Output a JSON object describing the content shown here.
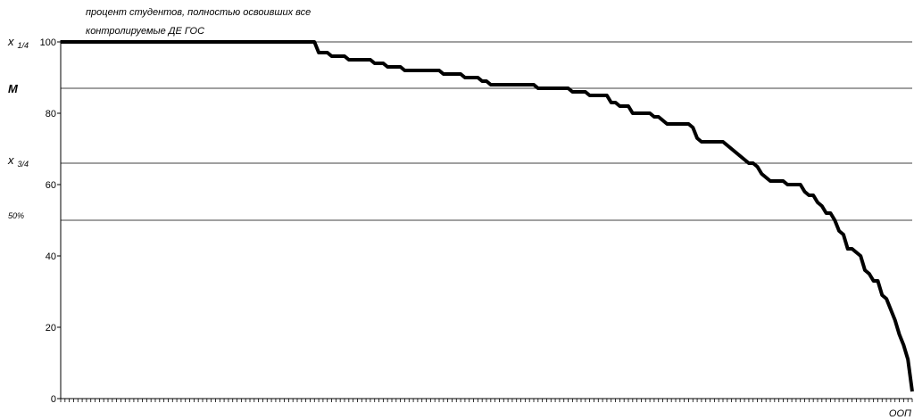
{
  "chart_data": {
    "type": "line",
    "title_lines": [
      "процент студентов, полностью освоивших все",
      "контролируемые ДЕ ГОС"
    ],
    "xlabel": "ООП",
    "ylim": [
      0,
      100
    ],
    "yticks": [
      0,
      20,
      40,
      60,
      80,
      100
    ],
    "reference_lines": [
      {
        "label": "x",
        "sub": "1/4",
        "value": 100
      },
      {
        "label": "M",
        "sub": "",
        "value": 87
      },
      {
        "label": "x",
        "sub": "3/4",
        "value": 66
      },
      {
        "label": "50%",
        "sub": "",
        "value": 50
      }
    ],
    "series": [
      {
        "line_color": "#000000",
        "y": [
          100,
          100,
          100,
          100,
          100,
          100,
          100,
          100,
          100,
          100,
          100,
          100,
          100,
          100,
          100,
          100,
          100,
          100,
          100,
          100,
          100,
          100,
          100,
          100,
          100,
          100,
          100,
          100,
          100,
          100,
          100,
          100,
          100,
          100,
          100,
          100,
          100,
          100,
          100,
          100,
          100,
          100,
          100,
          100,
          100,
          100,
          100,
          100,
          100,
          100,
          100,
          100,
          100,
          100,
          100,
          100,
          100,
          100,
          100,
          100,
          97,
          97,
          97,
          96,
          96,
          96,
          96,
          95,
          95,
          95,
          95,
          95,
          95,
          94,
          94,
          94,
          93,
          93,
          93,
          93,
          92,
          92,
          92,
          92,
          92,
          92,
          92,
          92,
          92,
          91,
          91,
          91,
          91,
          91,
          90,
          90,
          90,
          90,
          89,
          89,
          88,
          88,
          88,
          88,
          88,
          88,
          88,
          88,
          88,
          88,
          88,
          87,
          87,
          87,
          87,
          87,
          87,
          87,
          87,
          86,
          86,
          86,
          86,
          85,
          85,
          85,
          85,
          85,
          83,
          83,
          82,
          82,
          82,
          80,
          80,
          80,
          80,
          80,
          79,
          79,
          78,
          77,
          77,
          77,
          77,
          77,
          77,
          76,
          73,
          72,
          72,
          72,
          72,
          72,
          72,
          71,
          70,
          69,
          68,
          67,
          66,
          66,
          65,
          63,
          62,
          61,
          61,
          61,
          61,
          60,
          60,
          60,
          60,
          58,
          57,
          57,
          55,
          54,
          52,
          52,
          50,
          47,
          46,
          42,
          42,
          41,
          40,
          36,
          35,
          33,
          33,
          29,
          28,
          25,
          22,
          18,
          15,
          11,
          2
        ]
      }
    ]
  }
}
